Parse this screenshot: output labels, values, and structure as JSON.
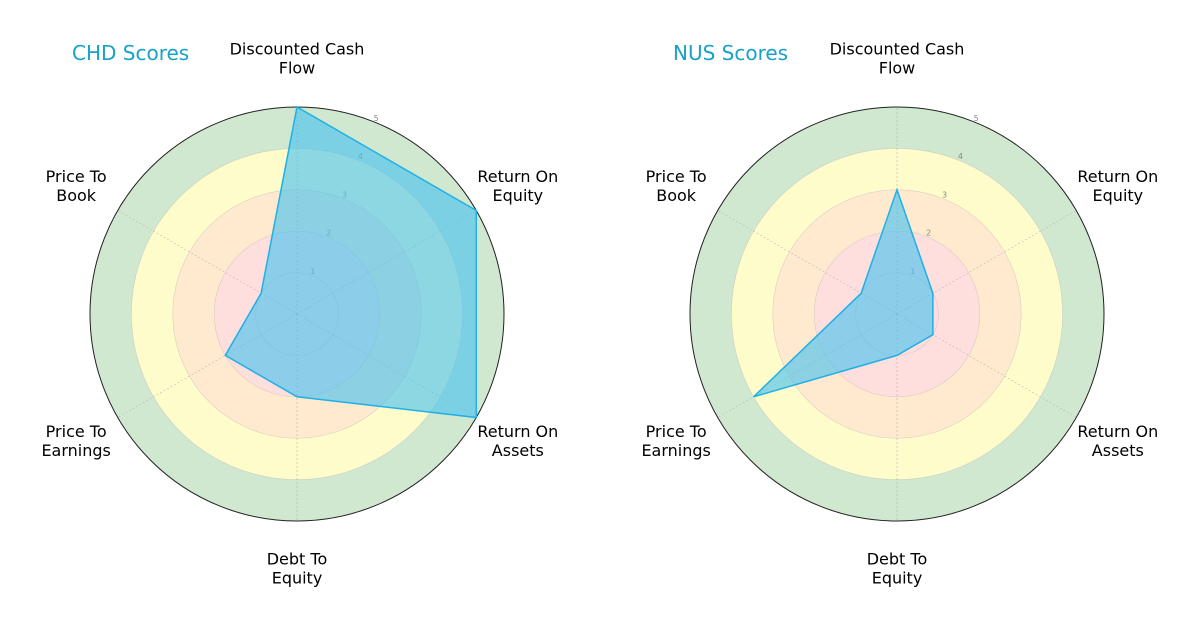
{
  "colors": {
    "title": "#17a2c8",
    "series_fill": "#4ec3ee",
    "series_stroke": "#1fb0e6",
    "band_1": "#ffdede",
    "band_2": "#ffe9cf",
    "band_3": "#fffccc",
    "band_4": "#d0e7d0",
    "outer_ring": "#222222",
    "grid": "#bbbbbb"
  },
  "chart_data": [
    {
      "type": "radar",
      "title": "CHD Scores",
      "axes": [
        "Discounted Cash Flow",
        "Return On Equity",
        "Return On Assets",
        "Debt To Equity",
        "Price To Earnings",
        "Price To Book"
      ],
      "axis_label_lines": [
        [
          "Discounted Cash",
          "Flow"
        ],
        [
          "Return On",
          "Equity"
        ],
        [
          "Return On",
          "Assets"
        ],
        [
          "Debt To",
          "Equity"
        ],
        [
          "Price To",
          "Earnings"
        ],
        [
          "Price To",
          "Book"
        ]
      ],
      "rlim": [
        0,
        5
      ],
      "rticks": [
        "1",
        "2",
        "3",
        "4",
        "5"
      ],
      "bands": [
        2,
        3,
        4,
        5
      ],
      "series": [
        {
          "values": [
            5,
            5,
            5,
            2,
            2,
            1
          ]
        }
      ]
    },
    {
      "type": "radar",
      "title": "NUS Scores",
      "axes": [
        "Discounted Cash Flow",
        "Return On Equity",
        "Return On Assets",
        "Debt To Equity",
        "Price To Earnings",
        "Price To Book"
      ],
      "axis_label_lines": [
        [
          "Discounted Cash",
          "Flow"
        ],
        [
          "Return On",
          "Equity"
        ],
        [
          "Return On",
          "Assets"
        ],
        [
          "Debt To",
          "Equity"
        ],
        [
          "Price To",
          "Earnings"
        ],
        [
          "Price To",
          "Book"
        ]
      ],
      "rlim": [
        0,
        5
      ],
      "rticks": [
        "1",
        "2",
        "3",
        "4",
        "5"
      ],
      "bands": [
        2,
        3,
        4,
        5
      ],
      "series": [
        {
          "values": [
            3,
            1,
            1,
            1,
            4,
            1
          ]
        }
      ]
    }
  ]
}
